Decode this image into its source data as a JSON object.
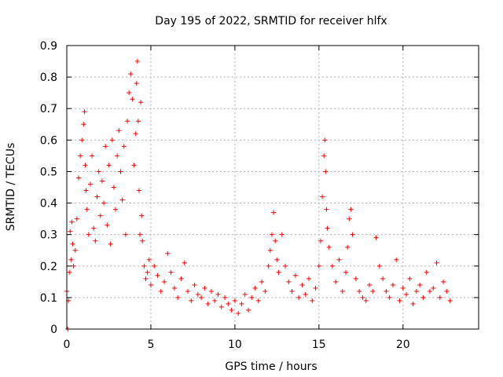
{
  "chart_data": {
    "type": "scatter",
    "title": "Day 195 of 2022, SRMTID for receiver hlfx",
    "xlabel": "GPS time / hours",
    "ylabel": "SRMTID / TECUs",
    "xlim": [
      0,
      24.5
    ],
    "ylim": [
      0,
      0.9
    ],
    "xticks": [
      0,
      5,
      10,
      15,
      20
    ],
    "yticks": [
      0,
      0.1,
      0.2,
      0.3,
      0.4,
      0.5,
      0.6,
      0.7,
      0.8,
      0.9
    ],
    "grid": true,
    "marker": "+",
    "marker_color": "#ff0000",
    "series": [
      {
        "name": "SRMTID",
        "x": [
          0.0,
          0.05,
          0.1,
          0.15,
          0.2,
          0.25,
          0.3,
          0.35,
          0.4,
          0.5,
          0.6,
          0.7,
          0.8,
          0.9,
          1.0,
          1.05,
          1.1,
          1.15,
          1.2,
          1.3,
          1.4,
          1.5,
          1.6,
          1.7,
          1.8,
          1.9,
          2.0,
          2.1,
          2.2,
          2.3,
          2.4,
          2.5,
          2.6,
          2.7,
          2.8,
          2.9,
          3.0,
          3.1,
          3.2,
          3.3,
          3.4,
          3.5,
          3.6,
          3.7,
          3.8,
          3.9,
          4.0,
          4.1,
          4.15,
          4.2,
          4.25,
          4.3,
          4.35,
          4.4,
          4.45,
          4.5,
          4.6,
          4.7,
          4.8,
          4.9,
          5.0,
          5.2,
          5.4,
          5.6,
          5.8,
          6.0,
          6.2,
          6.4,
          6.6,
          6.8,
          7.0,
          7.2,
          7.4,
          7.6,
          7.8,
          8.0,
          8.2,
          8.4,
          8.6,
          8.8,
          9.0,
          9.2,
          9.4,
          9.6,
          9.8,
          10.0,
          10.2,
          10.4,
          10.6,
          10.8,
          11.0,
          11.2,
          11.4,
          11.6,
          11.8,
          12.0,
          12.1,
          12.2,
          12.3,
          12.4,
          12.5,
          12.6,
          12.8,
          13.0,
          13.2,
          13.4,
          13.6,
          13.8,
          14.0,
          14.2,
          14.4,
          14.6,
          14.8,
          15.0,
          15.1,
          15.2,
          15.3,
          15.35,
          15.4,
          15.45,
          15.5,
          15.6,
          15.8,
          16.0,
          16.2,
          16.4,
          16.6,
          16.7,
          16.8,
          16.9,
          17.0,
          17.2,
          17.4,
          17.6,
          17.8,
          18.0,
          18.2,
          18.4,
          18.6,
          18.8,
          19.0,
          19.2,
          19.4,
          19.6,
          19.8,
          20.0,
          20.2,
          20.4,
          20.6,
          20.8,
          21.0,
          21.2,
          21.4,
          21.6,
          21.8,
          22.0,
          22.2,
          22.4,
          22.6,
          22.8
        ],
        "y": [
          0.12,
          0.0,
          0.09,
          0.18,
          0.31,
          0.22,
          0.34,
          0.27,
          0.2,
          0.25,
          0.35,
          0.48,
          0.55,
          0.6,
          0.65,
          0.69,
          0.52,
          0.44,
          0.38,
          0.3,
          0.46,
          0.55,
          0.32,
          0.28,
          0.42,
          0.5,
          0.36,
          0.47,
          0.4,
          0.58,
          0.33,
          0.52,
          0.27,
          0.6,
          0.45,
          0.38,
          0.55,
          0.63,
          0.5,
          0.41,
          0.58,
          0.3,
          0.66,
          0.75,
          0.81,
          0.73,
          0.52,
          0.62,
          0.78,
          0.85,
          0.66,
          0.44,
          0.3,
          0.72,
          0.36,
          0.28,
          0.2,
          0.16,
          0.18,
          0.22,
          0.14,
          0.2,
          0.17,
          0.12,
          0.15,
          0.24,
          0.18,
          0.13,
          0.1,
          0.16,
          0.21,
          0.12,
          0.09,
          0.14,
          0.11,
          0.1,
          0.13,
          0.08,
          0.12,
          0.09,
          0.11,
          0.07,
          0.1,
          0.08,
          0.06,
          0.09,
          0.05,
          0.08,
          0.11,
          0.06,
          0.1,
          0.13,
          0.09,
          0.15,
          0.12,
          0.2,
          0.25,
          0.3,
          0.37,
          0.28,
          0.22,
          0.18,
          0.3,
          0.2,
          0.15,
          0.12,
          0.17,
          0.1,
          0.14,
          0.11,
          0.16,
          0.09,
          0.13,
          0.2,
          0.28,
          0.42,
          0.55,
          0.6,
          0.5,
          0.38,
          0.32,
          0.26,
          0.2,
          0.15,
          0.22,
          0.12,
          0.18,
          0.26,
          0.35,
          0.38,
          0.3,
          0.16,
          0.12,
          0.1,
          0.09,
          0.14,
          0.12,
          0.29,
          0.2,
          0.16,
          0.12,
          0.1,
          0.14,
          0.22,
          0.09,
          0.13,
          0.11,
          0.16,
          0.08,
          0.12,
          0.14,
          0.1,
          0.18,
          0.12,
          0.13,
          0.21,
          0.1,
          0.15,
          0.12,
          0.09
        ]
      }
    ]
  }
}
